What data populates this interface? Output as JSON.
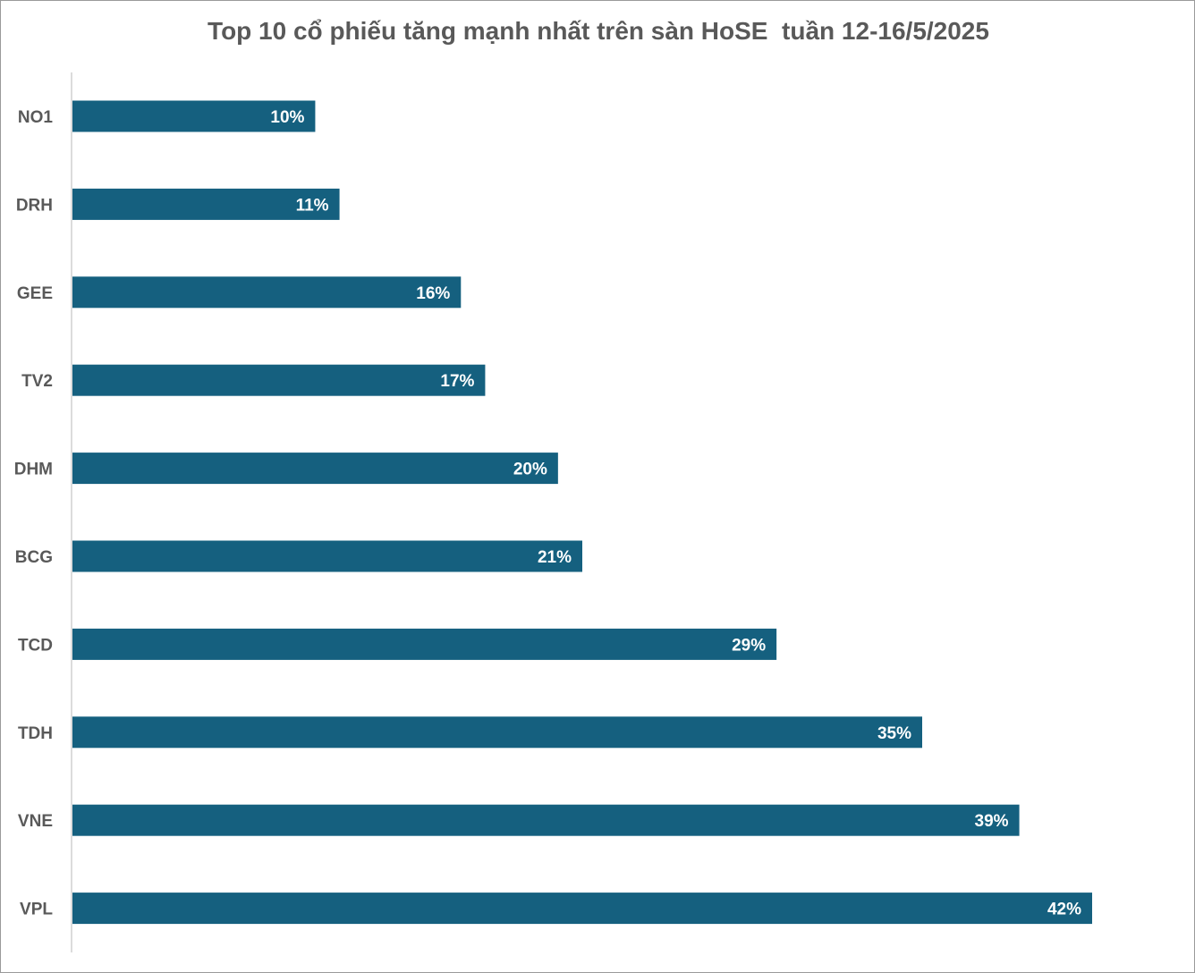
{
  "chart_data": {
    "type": "bar",
    "orientation": "horizontal",
    "title": "Top 10 cổ phiếu tăng mạnh nhất trên sàn HoSE  tuần 12-16/5/2025",
    "categories": [
      "NO1",
      "DRH",
      "GEE",
      "TV2",
      "DHM",
      "BCG",
      "TCD",
      "TDH",
      "VNE",
      "VPL"
    ],
    "values": [
      10,
      11,
      16,
      17,
      20,
      21,
      29,
      35,
      39,
      42
    ],
    "value_labels": [
      "10%",
      "11%",
      "16%",
      "17%",
      "20%",
      "21%",
      "29%",
      "35%",
      "39%",
      "42%"
    ],
    "unit": "%",
    "xlim": [
      0,
      42
    ],
    "grid": false,
    "bar_color": "#15607f"
  }
}
